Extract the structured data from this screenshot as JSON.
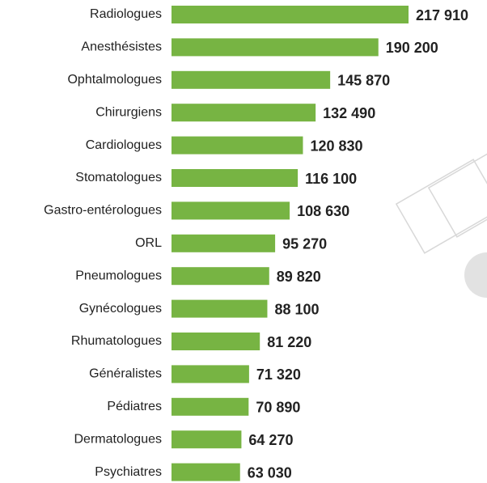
{
  "chart_data": {
    "type": "bar",
    "orientation": "horizontal",
    "color": "#77b443",
    "categories": [
      "Radiologues",
      "Anesthésistes",
      "Ophtalmologues",
      "Chirurgiens",
      "Cardiologues",
      "Stomatologues",
      "Gastro-entérologues",
      "ORL",
      "Pneumologues",
      "Gynécologues",
      "Rhumatologues",
      "Généralistes",
      "Pédiatres",
      "Dermatologues",
      "Psychiatres"
    ],
    "values": [
      217910,
      190200,
      145870,
      132490,
      120830,
      116100,
      108630,
      95270,
      89820,
      88100,
      81220,
      71320,
      70890,
      64270,
      63030
    ],
    "value_labels": [
      "217 910",
      "190 200",
      "145 870",
      "132 490",
      "120 830",
      "116 100",
      "108 630",
      "95 270",
      "89 820",
      "88 100",
      "81 220",
      "71 320",
      "70 890",
      "64 270",
      "63 030"
    ]
  }
}
